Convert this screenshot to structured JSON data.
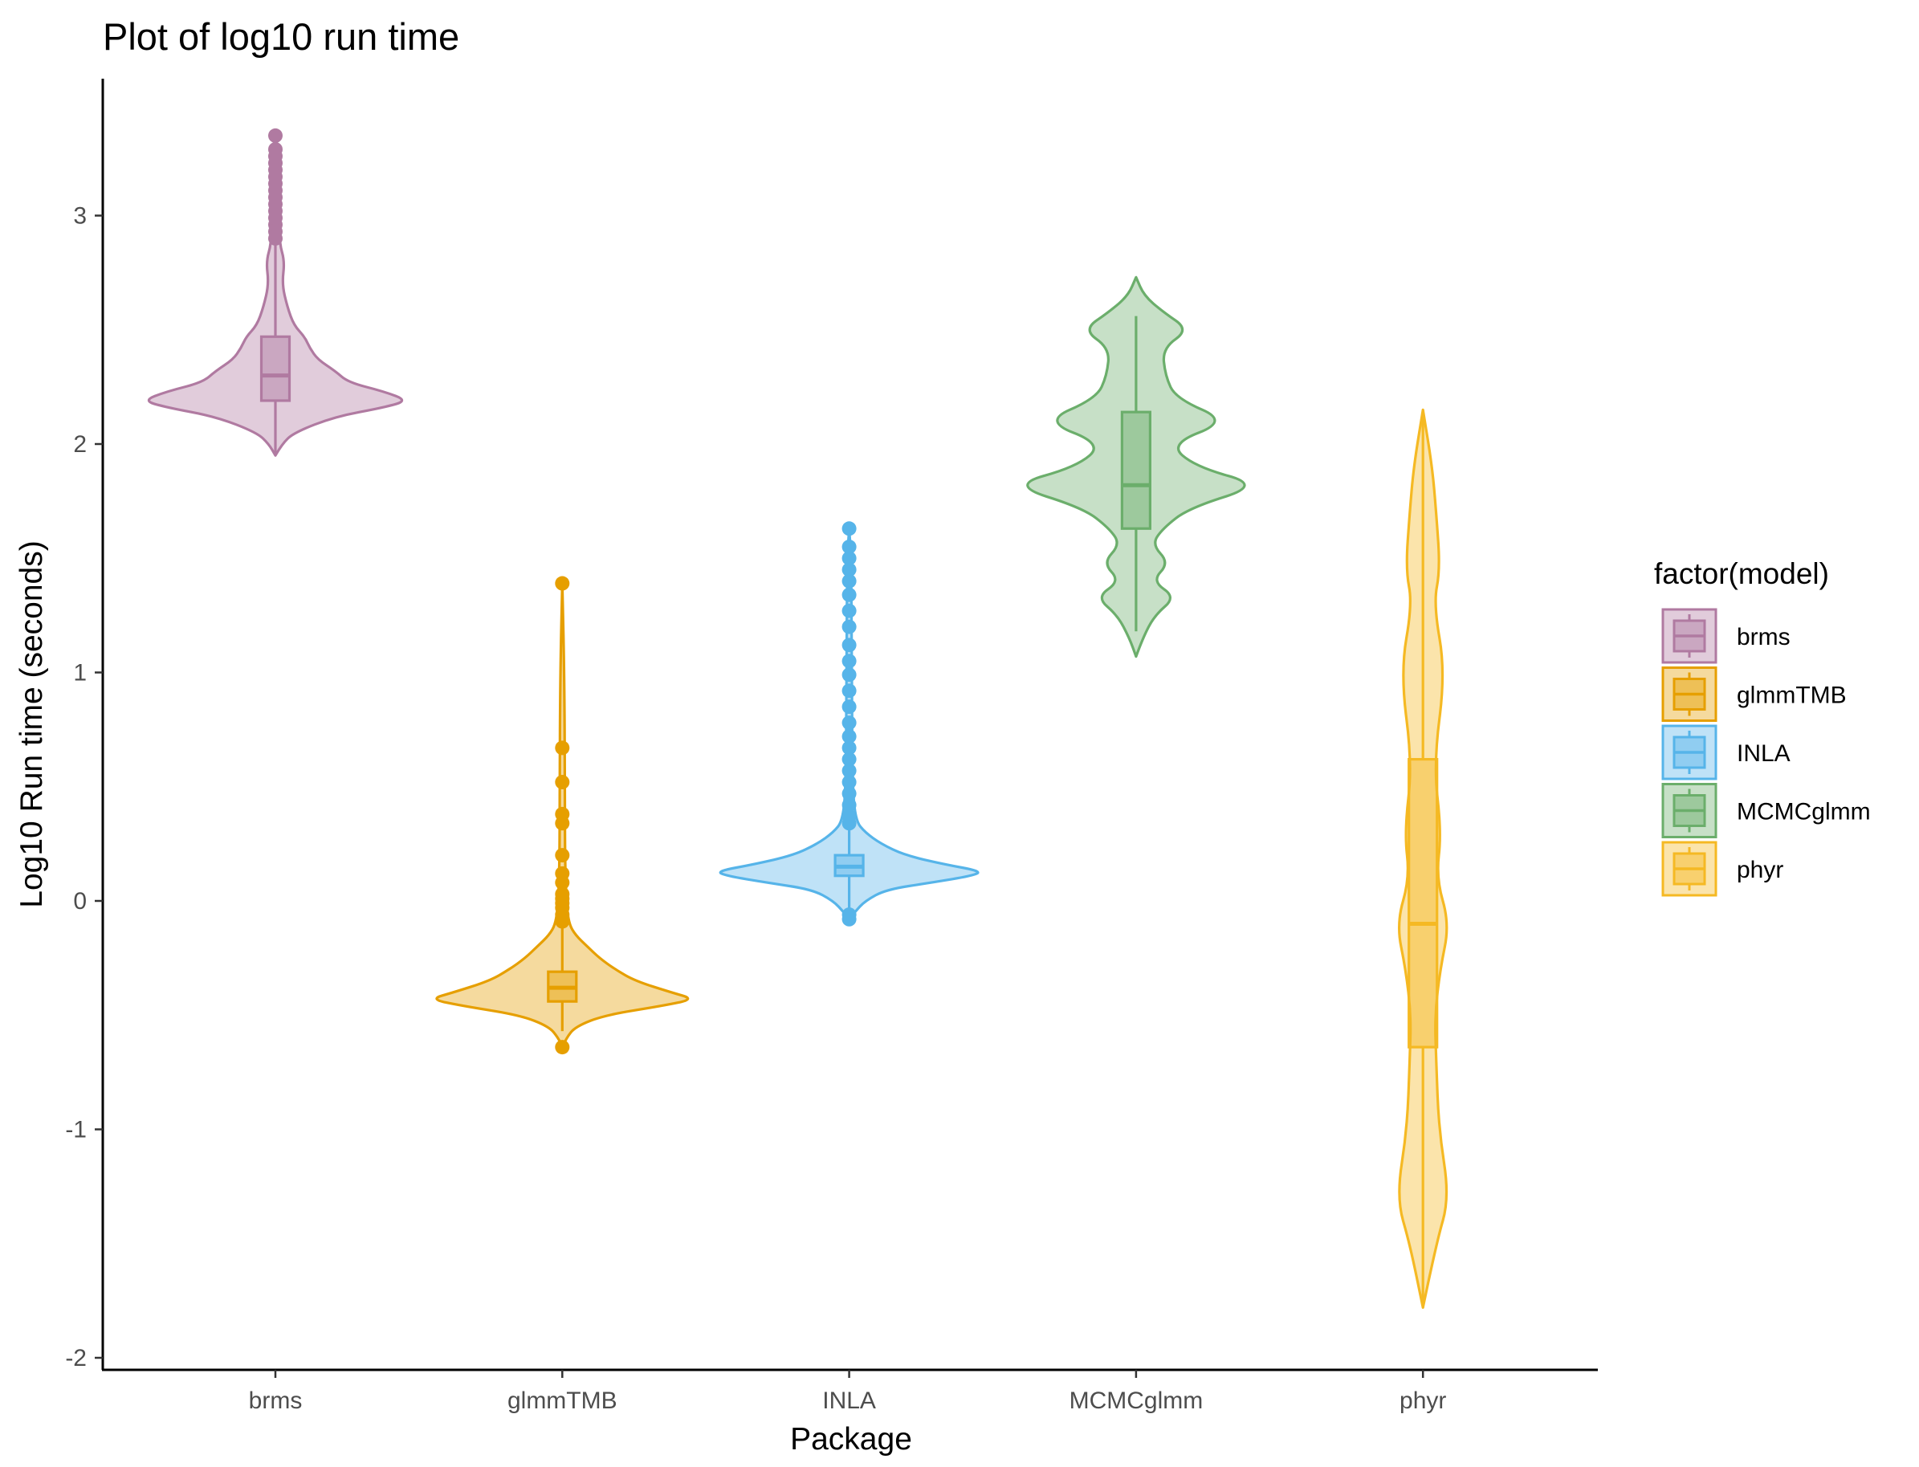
{
  "chart_data": {
    "type": "violin",
    "title": "Plot of log10 run time",
    "xlabel": "Package",
    "ylabel": "Log10 Run time (seconds)",
    "ylim": [
      -2.05,
      3.6
    ],
    "yticks": [
      -2,
      -1,
      0,
      1,
      2,
      3
    ],
    "grid": false,
    "legend": {
      "title": "factor(model)",
      "position": "right"
    },
    "categories": [
      "brms",
      "glmmTMB",
      "INLA",
      "MCMCglmm",
      "phyr"
    ],
    "series": [
      {
        "name": "brms",
        "color": "#B07AA1",
        "box": {
          "lower": 2.19,
          "median": 2.3,
          "upper": 2.47,
          "whisker_low": 1.95,
          "whisker_high": 2.88
        },
        "outliers": [
          2.9,
          2.93,
          2.96,
          2.99,
          3.02,
          3.05,
          3.08,
          3.11,
          3.14,
          3.17,
          3.2,
          3.23,
          3.26,
          3.29,
          3.35
        ],
        "density": [
          [
            1.95,
            0.0
          ],
          [
            2.0,
            0.05
          ],
          [
            2.05,
            0.14
          ],
          [
            2.12,
            0.45
          ],
          [
            2.16,
            0.82
          ],
          [
            2.19,
            1.0
          ],
          [
            2.23,
            0.82
          ],
          [
            2.27,
            0.55
          ],
          [
            2.32,
            0.45
          ],
          [
            2.37,
            0.32
          ],
          [
            2.42,
            0.26
          ],
          [
            2.47,
            0.22
          ],
          [
            2.52,
            0.14
          ],
          [
            2.6,
            0.09
          ],
          [
            2.7,
            0.05
          ],
          [
            2.8,
            0.07
          ],
          [
            2.88,
            0.03
          ],
          [
            3.0,
            0.035
          ],
          [
            3.2,
            0.03
          ],
          [
            3.35,
            0.0
          ]
        ]
      },
      {
        "name": "glmmTMB",
        "color": "#E69F00",
        "box": {
          "lower": -0.44,
          "median": -0.38,
          "upper": -0.31,
          "whisker_low": -0.57,
          "whisker_high": -0.11
        },
        "outliers": [
          -0.64,
          -0.09,
          -0.06,
          -0.03,
          -0.01,
          0.01,
          0.03,
          0.08,
          0.12,
          0.2,
          0.34,
          0.38,
          0.52,
          0.67,
          1.39
        ],
        "density": [
          [
            -0.64,
            0.0
          ],
          [
            -0.6,
            0.03
          ],
          [
            -0.55,
            0.1
          ],
          [
            -0.5,
            0.32
          ],
          [
            -0.46,
            0.75
          ],
          [
            -0.43,
            1.0
          ],
          [
            -0.4,
            0.82
          ],
          [
            -0.35,
            0.55
          ],
          [
            -0.3,
            0.4
          ],
          [
            -0.25,
            0.28
          ],
          [
            -0.2,
            0.19
          ],
          [
            -0.15,
            0.1
          ],
          [
            -0.1,
            0.05
          ],
          [
            0.0,
            0.03
          ],
          [
            0.2,
            0.02
          ],
          [
            0.5,
            0.02
          ],
          [
            1.0,
            0.015
          ],
          [
            1.39,
            0.0
          ]
        ]
      },
      {
        "name": "INLA",
        "color": "#56B4E9",
        "box": {
          "lower": 0.11,
          "median": 0.15,
          "upper": 0.2,
          "whisker_low": -0.04,
          "whisker_high": 0.32
        },
        "outliers": [
          -0.08,
          -0.06,
          0.34,
          0.37,
          0.42,
          0.47,
          0.52,
          0.57,
          0.62,
          0.67,
          0.72,
          0.78,
          0.85,
          0.92,
          0.99,
          1.05,
          1.12,
          1.2,
          1.27,
          1.34,
          1.4,
          1.45,
          1.5,
          1.55,
          1.63
        ],
        "density": [
          [
            -0.08,
            0.0
          ],
          [
            -0.05,
            0.04
          ],
          [
            0.0,
            0.12
          ],
          [
            0.05,
            0.28
          ],
          [
            0.08,
            0.62
          ],
          [
            0.11,
            0.93
          ],
          [
            0.13,
            1.0
          ],
          [
            0.16,
            0.72
          ],
          [
            0.2,
            0.42
          ],
          [
            0.25,
            0.24
          ],
          [
            0.3,
            0.12
          ],
          [
            0.35,
            0.05
          ],
          [
            0.5,
            0.025
          ],
          [
            1.0,
            0.02
          ],
          [
            1.5,
            0.015
          ],
          [
            1.63,
            0.0
          ]
        ]
      },
      {
        "name": "MCMCglmm",
        "color": "#6BAE6B",
        "box": {
          "lower": 1.63,
          "median": 1.82,
          "upper": 2.14,
          "whisker_low": 1.18,
          "whisker_high": 2.56
        },
        "outliers": [],
        "density": [
          [
            1.07,
            0.0
          ],
          [
            1.15,
            0.05
          ],
          [
            1.25,
            0.14
          ],
          [
            1.33,
            0.3
          ],
          [
            1.4,
            0.12
          ],
          [
            1.48,
            0.25
          ],
          [
            1.56,
            0.12
          ],
          [
            1.63,
            0.2
          ],
          [
            1.72,
            0.4
          ],
          [
            1.82,
            0.95
          ],
          [
            1.9,
            0.45
          ],
          [
            2.0,
            0.25
          ],
          [
            2.1,
            0.7
          ],
          [
            2.2,
            0.3
          ],
          [
            2.3,
            0.22
          ],
          [
            2.42,
            0.2
          ],
          [
            2.5,
            0.4
          ],
          [
            2.58,
            0.2
          ],
          [
            2.65,
            0.06
          ],
          [
            2.73,
            0.0
          ]
        ]
      },
      {
        "name": "phyr",
        "color": "#F5B923",
        "box": {
          "lower": -0.64,
          "median": -0.1,
          "upper": 0.62,
          "whisker_low": -1.78,
          "whisker_high": 2.15
        },
        "outliers": [],
        "density": [
          [
            -1.78,
            0.0
          ],
          [
            -1.5,
            0.1
          ],
          [
            -1.3,
            0.2
          ],
          [
            -1.0,
            0.12
          ],
          [
            -0.7,
            0.1
          ],
          [
            -0.5,
            0.09
          ],
          [
            -0.3,
            0.13
          ],
          [
            -0.1,
            0.2
          ],
          [
            0.1,
            0.1
          ],
          [
            0.3,
            0.14
          ],
          [
            0.6,
            0.08
          ],
          [
            1.0,
            0.17
          ],
          [
            1.3,
            0.08
          ],
          [
            1.45,
            0.13
          ],
          [
            1.7,
            0.1
          ],
          [
            1.9,
            0.07
          ],
          [
            2.15,
            0.0
          ]
        ]
      }
    ]
  }
}
